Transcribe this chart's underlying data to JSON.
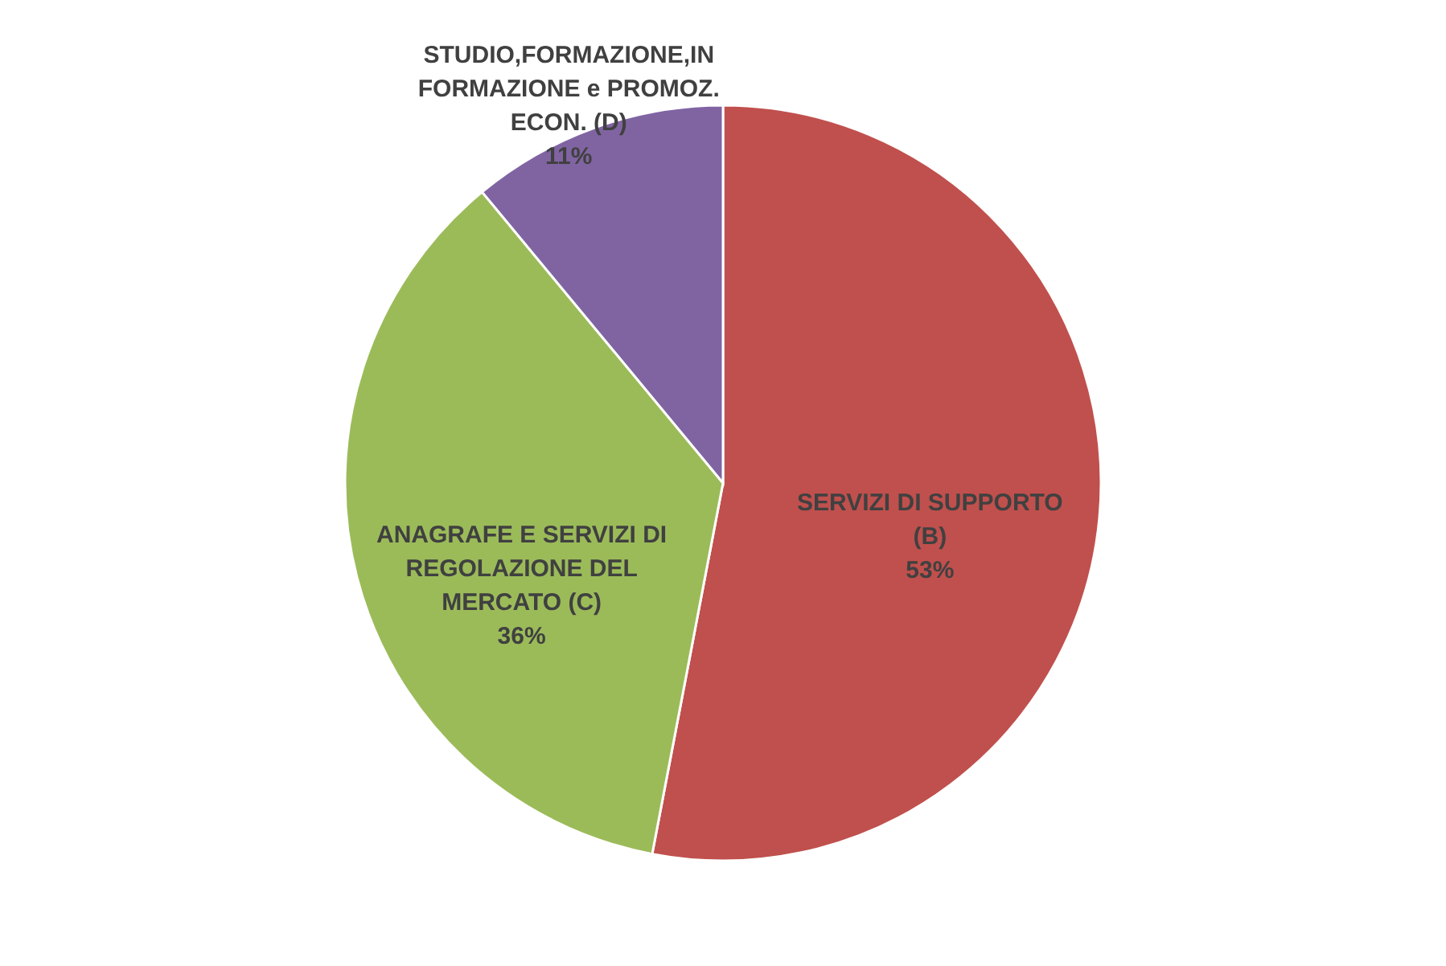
{
  "chart_data": {
    "type": "pie",
    "categories": [
      "SERVIZI DI SUPPORTO (B)",
      "ANAGRAFE E SERVIZI DI REGOLAZIONE DEL MERCATO (C)",
      "STUDIO,FORMAZIONE,IN FORMAZIONE e PROMOZ. ECON. (D)"
    ],
    "values": [
      53,
      36,
      11
    ],
    "colors": [
      "#c0504d",
      "#9bbb59",
      "#8064a2"
    ],
    "value_labels": [
      "53%",
      "36%",
      "11%"
    ]
  }
}
